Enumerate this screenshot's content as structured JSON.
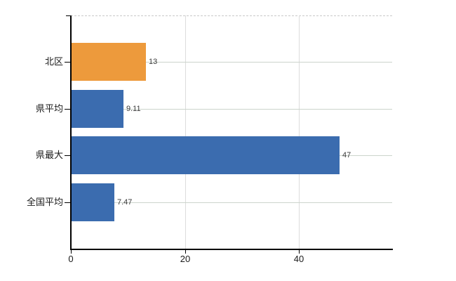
{
  "chart_data": {
    "type": "bar",
    "orientation": "horizontal",
    "categories": [
      "北区",
      "県平均",
      "県最大",
      "全国平均"
    ],
    "values": [
      13,
      9.11,
      47,
      7.47
    ],
    "bar_colors": [
      "#ed9a3c",
      "#3b6caf",
      "#3b6caf",
      "#3b6caf"
    ],
    "highlighted_category": "北区",
    "x_ticks": [
      0,
      20,
      40
    ],
    "gridlines_x": [
      20,
      40
    ],
    "x_axis_range": [
      0,
      56.3
    ],
    "grid": true,
    "legend": false
  },
  "colors": {
    "bar_orange": "#ed9a3c",
    "bar_blue": "#3b6caf",
    "grid_vertical": "#dcdcdc",
    "grid_horizontal": "#ccd4cc",
    "axis": "#000000",
    "background": "#ffffff"
  }
}
